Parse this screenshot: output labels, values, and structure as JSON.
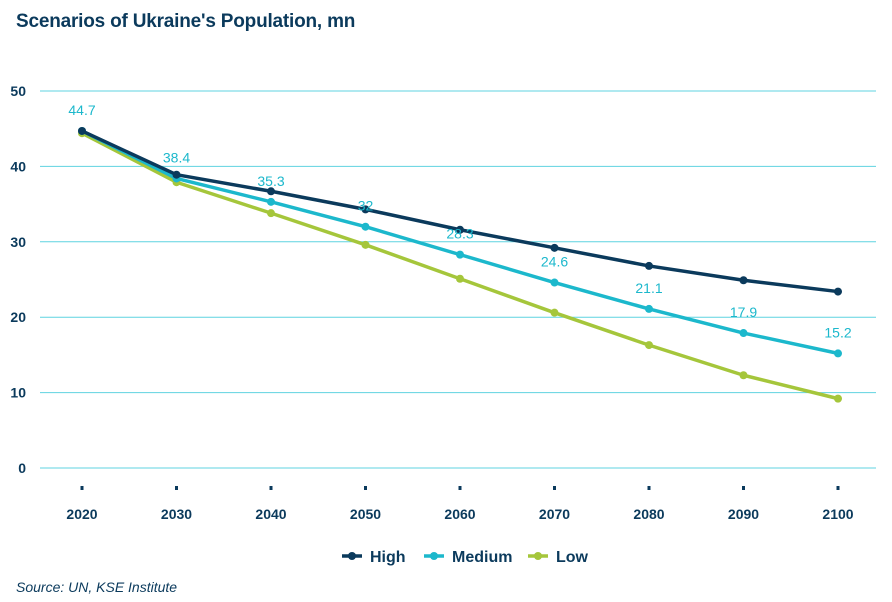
{
  "chart_data": {
    "type": "line",
    "title": "Scenarios of Ukraine's Population, mn",
    "xlabel": "",
    "ylabel": "",
    "x": [
      2020,
      2030,
      2040,
      2050,
      2060,
      2070,
      2080,
      2090,
      2100
    ],
    "ylim": [
      0,
      50
    ],
    "yticks": [
      0,
      10,
      20,
      30,
      40,
      50
    ],
    "grid": true,
    "legend_position": "bottom",
    "series": [
      {
        "name": "High",
        "color": "#0b3a5c",
        "values": [
          44.7,
          38.9,
          36.7,
          34.3,
          31.6,
          29.2,
          26.8,
          24.9,
          23.4
        ]
      },
      {
        "name": "Medium",
        "color": "#1cb8cc",
        "values": [
          44.7,
          38.4,
          35.3,
          32,
          28.3,
          24.6,
          21.1,
          17.9,
          15.2
        ],
        "data_labels": [
          "44.7",
          "38.4",
          "35.3",
          "32",
          "28.3",
          "24.6",
          "21.1",
          "17.9",
          "15.2"
        ]
      },
      {
        "name": "Low",
        "color": "#a5c63b",
        "values": [
          44.4,
          37.9,
          33.8,
          29.6,
          25.1,
          20.6,
          16.3,
          12.3,
          9.2
        ]
      }
    ],
    "source": "Source: UN, KSE Institute"
  }
}
